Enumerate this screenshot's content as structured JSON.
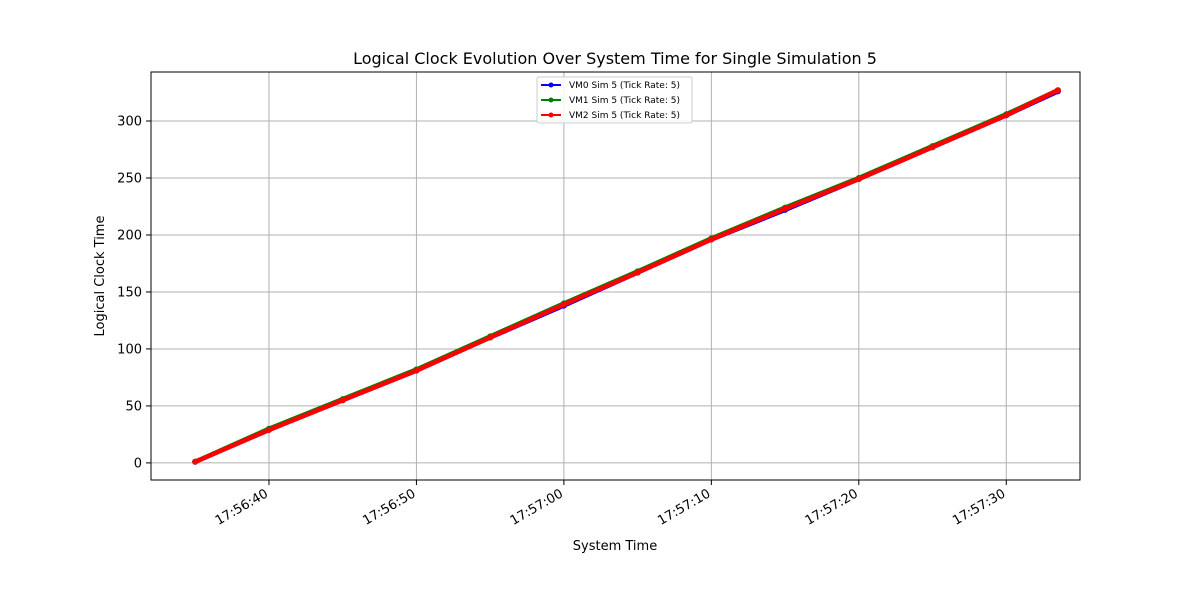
{
  "chart_data": {
    "type": "line",
    "title": "Logical Clock Evolution Over System Time for Single Simulation 5",
    "xlabel": "System Time",
    "ylabel": "Logical Clock Time",
    "x_axis_type": "time",
    "xlim": [
      "17:56:32",
      "17:57:35"
    ],
    "ylim": [
      -15,
      343
    ],
    "x_ticks": [
      "17:56:40",
      "17:56:50",
      "17:57:00",
      "17:57:10",
      "17:57:20",
      "17:57:30"
    ],
    "y_ticks": [
      0,
      50,
      100,
      150,
      200,
      250,
      300
    ],
    "grid": true,
    "legend_position": "top-center",
    "series": [
      {
        "name": "VM0 Sim 5 (Tick Rate: 5)",
        "color": "#0000ff",
        "marker": "circle",
        "x": [
          "17:56:35",
          "17:56:40",
          "17:56:45",
          "17:56:50",
          "17:56:55",
          "17:57:00",
          "17:57:05",
          "17:57:10",
          "17:57:15",
          "17:57:20",
          "17:57:25",
          "17:57:30",
          "17:57:33.5"
        ],
        "y": [
          1,
          29,
          55,
          81,
          110,
          138,
          167,
          196,
          222,
          249,
          277,
          305,
          326
        ]
      },
      {
        "name": "VM1 Sim 5 (Tick Rate: 5)",
        "color": "#008000",
        "marker": "circle",
        "x": [
          "17:56:35",
          "17:56:40",
          "17:56:45",
          "17:56:50",
          "17:56:55",
          "17:57:00",
          "17:57:05",
          "17:57:10",
          "17:57:15",
          "17:57:20",
          "17:57:25",
          "17:57:30",
          "17:57:33.5"
        ],
        "y": [
          1,
          30,
          56,
          82,
          111,
          140,
          168,
          197,
          224,
          250,
          278,
          306,
          327
        ]
      },
      {
        "name": "VM2 Sim 5 (Tick Rate: 5)",
        "color": "#ff0000",
        "marker": "circle",
        "x": [
          "17:56:35",
          "17:56:40",
          "17:56:45",
          "17:56:50",
          "17:56:55",
          "17:57:00",
          "17:57:05",
          "17:57:10",
          "17:57:15",
          "17:57:20",
          "17:57:25",
          "17:57:30",
          "17:57:33.5"
        ],
        "y": [
          1,
          29,
          55,
          81,
          110,
          139,
          167,
          196,
          223,
          249,
          277,
          305,
          327
        ]
      }
    ]
  }
}
